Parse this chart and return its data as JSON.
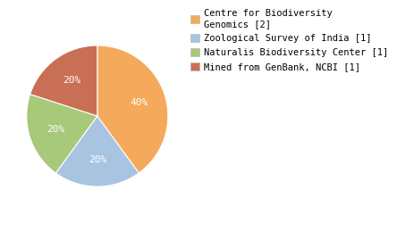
{
  "slices": [
    {
      "label": "Centre for Biodiversity\nGenomics [2]",
      "value": 40,
      "color": "#F5A95A"
    },
    {
      "label": "Zoological Survey of India [1]",
      "value": 20,
      "color": "#A8C4E0"
    },
    {
      "label": "Naturalis Biodiversity Center [1]",
      "value": 20,
      "color": "#A8C87A"
    },
    {
      "label": "Mined from GenBank, NCBI [1]",
      "value": 20,
      "color": "#C96F55"
    }
  ],
  "pct_labels": [
    "40%",
    "20%",
    "20%",
    "20%"
  ],
  "startangle": 90,
  "counterclock": false,
  "text_color": "white",
  "pct_fontsize": 8,
  "legend_fontsize": 7.5,
  "background_color": "#ffffff"
}
